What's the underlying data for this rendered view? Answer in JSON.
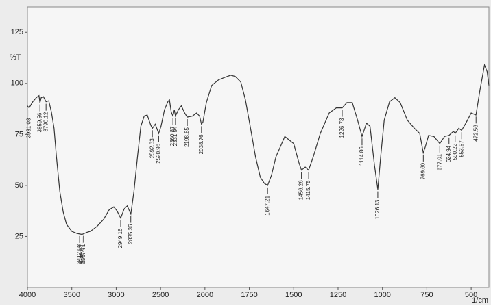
{
  "chart_data": {
    "type": "line",
    "y_label": "%T",
    "x_label": "1/cm",
    "xlim": [
      4000,
      400
    ],
    "x_scale_change": {
      "at": 2000,
      "factor": 2
    },
    "xticks": [
      4000,
      3500,
      3000,
      2500,
      2000,
      1750,
      1500,
      1250,
      1000,
      750,
      500
    ],
    "ylim": [
      0,
      137.5
    ],
    "yticks": [
      25,
      50,
      75,
      100,
      125
    ],
    "grid": false,
    "x": [
      4000,
      3981,
      3940,
      3900,
      3870,
      3859,
      3845,
      3820,
      3790,
      3760,
      3730,
      3700,
      3673,
      3635,
      3597,
      3560,
      3500,
      3445,
      3412,
      3385,
      3367,
      3330,
      3290,
      3215,
      3140,
      3080,
      3027,
      2990,
      2949,
      2910,
      2875,
      2835,
      2800,
      2760,
      2722,
      2684,
      2650,
      2610,
      2592,
      2560,
      2521,
      2495,
      2456,
      2418,
      2400,
      2380,
      2361,
      2345,
      2332,
      2300,
      2266,
      2228,
      2199,
      2140,
      2094,
      2060,
      2039,
      2023,
      1992,
      1962,
      1924,
      1886,
      1855,
      1829,
      1798,
      1772,
      1745,
      1715,
      1688,
      1665,
      1647,
      1625,
      1600,
      1550,
      1500,
      1470,
      1456,
      1435,
      1416,
      1390,
      1350,
      1300,
      1260,
      1227,
      1200,
      1170,
      1140,
      1115,
      1090,
      1070,
      1045,
      1026,
      1010,
      990,
      960,
      930,
      900,
      860,
      820,
      790,
      770,
      760,
      740,
      710,
      677,
      650,
      625,
      600,
      590,
      570,
      554,
      530,
      500,
      473,
      450,
      425,
      410,
      400
    ],
    "series": [
      {
        "color": "#333333",
        "values": [
          89,
          88,
          91,
          93,
          94,
          90.5,
          93,
          93.5,
          91,
          91.5,
          86,
          78,
          64,
          47,
          37,
          31,
          27.5,
          26.5,
          26.2,
          26,
          26.3,
          27,
          27.5,
          30,
          33.5,
          38,
          39.5,
          37.5,
          34,
          38.5,
          40,
          36,
          47,
          64,
          79,
          84,
          84.5,
          79.5,
          78,
          80,
          75.5,
          79,
          87,
          91,
          92,
          86,
          84,
          87,
          84,
          87,
          89,
          85.5,
          83.5,
          84,
          85.5,
          84,
          80,
          81,
          90.6,
          99,
          101.7,
          103,
          104,
          103.4,
          100.7,
          92,
          79,
          64,
          54,
          51,
          50,
          55,
          64,
          74,
          70.5,
          61,
          57.5,
          59,
          57.5,
          64,
          75.5,
          85.5,
          88,
          88,
          90.6,
          90.6,
          82,
          74,
          80.5,
          79,
          60,
          48,
          64,
          82,
          91,
          93,
          90.6,
          82,
          78,
          75.5,
          66,
          68.5,
          74.5,
          74,
          70.5,
          74,
          74.5,
          76.5,
          75.5,
          78,
          77,
          80.5,
          85.5,
          84.5,
          97,
          109,
          105.7,
          99
        ]
      }
    ],
    "peak_labels": [
      3981.08,
      3859.56,
      3790.12,
      3412.08,
      3385.07,
      3367.71,
      2949.16,
      2835.36,
      2592.33,
      2520.96,
      2360.87,
      2331.94,
      2198.85,
      2038.76,
      1647.21,
      1456.26,
      1415.75,
      1226.73,
      1114.86,
      1026.13,
      {
        "value": 769.6,
        "label": "769.60"
      },
      677.01,
      624.94,
      590.22,
      553.57,
      472.56
    ]
  }
}
